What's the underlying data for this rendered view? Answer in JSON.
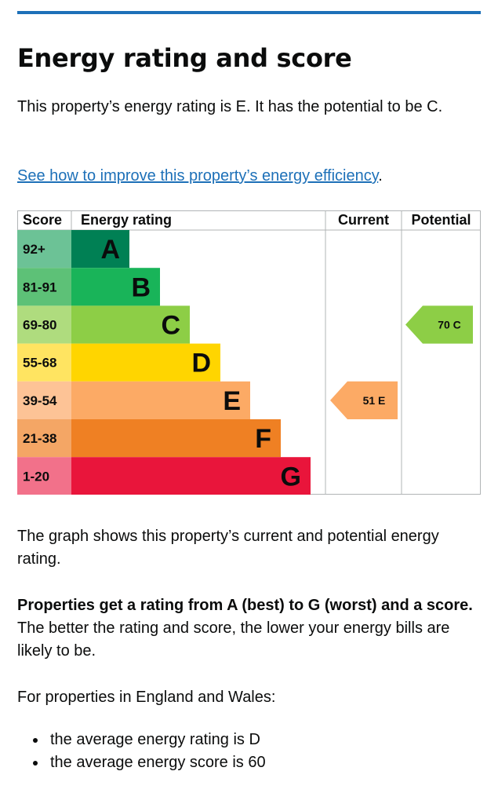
{
  "heading": "Energy rating and score",
  "intro": "This property’s energy rating is E. It has the potential to be C.",
  "improve_link": "See how to improve this property’s energy efficiency",
  "improve_suffix": ".",
  "graph_note": "The graph shows this property’s current and potential energy rating.",
  "ratings_bold": "Properties get a rating from A (best) to G (worst) and a score.",
  "ratings_rest": " The better the rating and score, the lower your energy bills are likely to be.",
  "average_intro": "For properties in England and Wales:",
  "average_items": [
    "the average energy rating is D",
    "the average energy score is 60"
  ],
  "chart_data": {
    "type": "bar",
    "headers": {
      "score": "Score",
      "rating": "Energy rating",
      "current": "Current",
      "potential": "Potential"
    },
    "bands": [
      {
        "band": "A",
        "range": "92+",
        "color": "#008054",
        "score_color": "#6cc296"
      },
      {
        "band": "B",
        "range": "81-91",
        "color": "#19b459",
        "score_color": "#5dc177"
      },
      {
        "band": "C",
        "range": "69-80",
        "color": "#8dce46",
        "score_color": "#afdc7e"
      },
      {
        "band": "D",
        "range": "55-68",
        "color": "#ffd500",
        "score_color": "#ffe461"
      },
      {
        "band": "E",
        "range": "39-54",
        "color": "#fcaa65",
        "score_color": "#fdc396"
      },
      {
        "band": "F",
        "range": "21-38",
        "color": "#ef8023",
        "score_color": "#f4a665"
      },
      {
        "band": "G",
        "range": "1-20",
        "color": "#e9153b",
        "score_color": "#f2718a"
      }
    ],
    "current": {
      "score": 51,
      "band": "E",
      "label": "51 E",
      "color": "#fcaa65"
    },
    "potential": {
      "score": 70,
      "band": "C",
      "label": "70 C",
      "color": "#8dce46"
    }
  }
}
